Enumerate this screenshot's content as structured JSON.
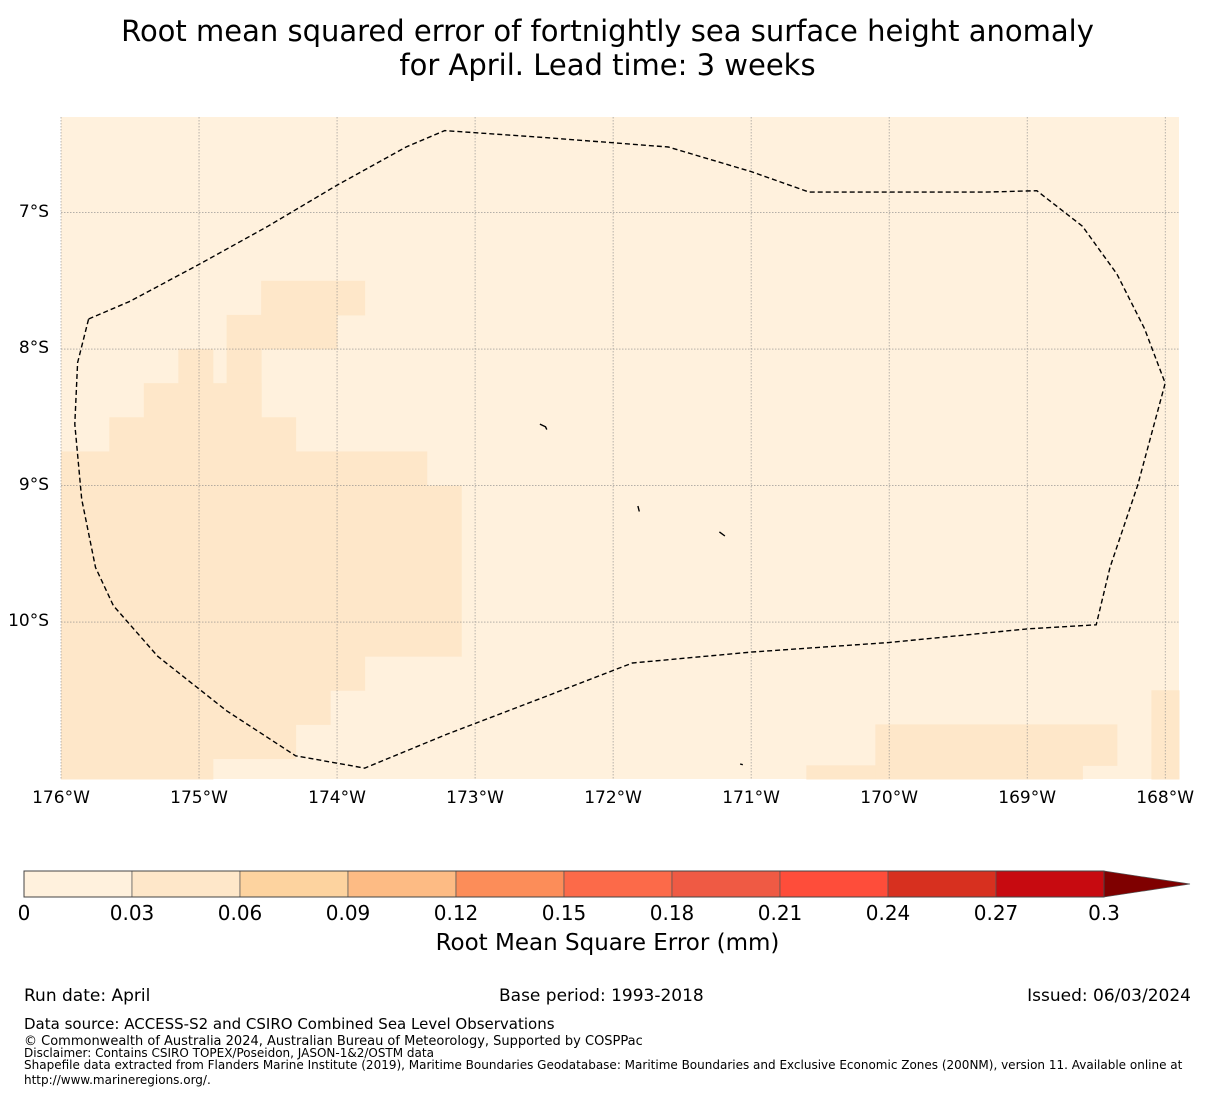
{
  "title_line1": "Root mean squared error of fortnightly sea surface height anomaly",
  "title_line2": "for April. Lead time: 3 weeks",
  "map": {
    "lon_range": [
      -176,
      -167.9
    ],
    "lat_range": [
      -11.15,
      -6.3
    ],
    "lon_ticks": [
      {
        "value": -176,
        "label": "176°W"
      },
      {
        "value": -175,
        "label": "175°W"
      },
      {
        "value": -174,
        "label": "174°W"
      },
      {
        "value": -173,
        "label": "173°W"
      },
      {
        "value": -172,
        "label": "172°W"
      },
      {
        "value": -171,
        "label": "171°W"
      },
      {
        "value": -170,
        "label": "170°W"
      },
      {
        "value": -169,
        "label": "169°W"
      },
      {
        "value": -168,
        "label": "168°W"
      }
    ],
    "lat_ticks": [
      {
        "value": -7,
        "label": "7°S"
      },
      {
        "value": -8,
        "label": "8°S"
      },
      {
        "value": -9,
        "label": "9°S"
      },
      {
        "value": -10,
        "label": "10°S"
      }
    ],
    "background_color": "#fff1dd",
    "eez_boundary": [
      [
        -175.8,
        -7.78
      ],
      [
        -175.5,
        -7.65
      ],
      [
        -175.0,
        -7.38
      ],
      [
        -174.5,
        -7.1
      ],
      [
        -174.0,
        -6.8
      ],
      [
        -173.5,
        -6.52
      ],
      [
        -173.22,
        -6.4
      ],
      [
        -172.5,
        -6.45
      ],
      [
        -171.6,
        -6.52
      ],
      [
        -171.0,
        -6.7
      ],
      [
        -170.58,
        -6.85
      ],
      [
        -170.0,
        -6.85
      ],
      [
        -169.3,
        -6.85
      ],
      [
        -168.93,
        -6.84
      ],
      [
        -168.6,
        -7.1
      ],
      [
        -168.35,
        -7.45
      ],
      [
        -168.15,
        -7.85
      ],
      [
        -168.0,
        -8.25
      ],
      [
        -168.2,
        -9.0
      ],
      [
        -168.4,
        -9.6
      ],
      [
        -168.5,
        -10.02
      ],
      [
        -169.0,
        -10.05
      ],
      [
        -170.0,
        -10.15
      ],
      [
        -171.0,
        -10.22
      ],
      [
        -171.86,
        -10.3
      ],
      [
        -172.5,
        -10.55
      ],
      [
        -173.2,
        -10.82
      ],
      [
        -173.8,
        -11.07
      ],
      [
        -174.3,
        -10.98
      ],
      [
        -174.8,
        -10.65
      ],
      [
        -175.3,
        -10.25
      ],
      [
        -175.62,
        -9.88
      ],
      [
        -175.75,
        -9.6
      ],
      [
        -175.85,
        -9.1
      ],
      [
        -175.9,
        -8.55
      ],
      [
        -175.88,
        -8.1
      ],
      [
        -175.8,
        -7.78
      ]
    ],
    "islands": [
      {
        "name": "",
        "points": [
          [
            -172.53,
            -8.55
          ],
          [
            -172.49,
            -8.57
          ],
          [
            -172.48,
            -8.59
          ]
        ]
      },
      {
        "name": "",
        "points": [
          [
            -171.82,
            -9.15
          ],
          [
            -171.81,
            -9.19
          ]
        ]
      },
      {
        "name": "",
        "points": [
          [
            -171.23,
            -9.34
          ],
          [
            -171.19,
            -9.37
          ]
        ]
      },
      {
        "name": "",
        "points": [
          [
            -171.08,
            -11.04
          ],
          [
            -171.06,
            -11.045
          ]
        ]
      }
    ],
    "error_cells_level2": [
      {
        "lon0": -174.55,
        "lon1": -173.8,
        "lat0": -7.75,
        "lat1": -7.5
      },
      {
        "lon0": -174.8,
        "lon1": -174.0,
        "lat0": -8.0,
        "lat1": -7.75
      },
      {
        "lon0": -175.15,
        "lon1": -174.9,
        "lat0": -8.25,
        "lat1": -8.0
      },
      {
        "lon0": -174.8,
        "lon1": -174.55,
        "lat0": -8.5,
        "lat1": -8.0
      },
      {
        "lon0": -175.4,
        "lon1": -174.55,
        "lat0": -8.5,
        "lat1": -8.25
      },
      {
        "lon0": -175.65,
        "lon1": -174.3,
        "lat0": -8.75,
        "lat1": -8.5
      },
      {
        "lon0": -176.0,
        "lon1": -173.35,
        "lat0": -9.0,
        "lat1": -8.75
      },
      {
        "lon0": -176.0,
        "lon1": -173.1,
        "lat0": -10.0,
        "lat1": -9.0
      },
      {
        "lon0": -176.0,
        "lon1": -173.1,
        "lat0": -10.25,
        "lat1": -10.0
      },
      {
        "lon0": -176.0,
        "lon1": -173.8,
        "lat0": -10.5,
        "lat1": -10.25
      },
      {
        "lon0": -176.0,
        "lon1": -174.05,
        "lat0": -10.75,
        "lat1": -10.5
      },
      {
        "lon0": -176.0,
        "lon1": -174.3,
        "lat0": -11.0,
        "lat1": -10.75
      },
      {
        "lon0": -176.0,
        "lon1": -174.9,
        "lat0": -11.15,
        "lat1": -11.0
      },
      {
        "lon0": -170.1,
        "lon1": -168.35,
        "lat0": -11.05,
        "lat1": -10.75
      },
      {
        "lon0": -170.6,
        "lon1": -170.1,
        "lat0": -11.15,
        "lat1": -11.05
      },
      {
        "lon0": -170.1,
        "lon1": -168.6,
        "lat0": -11.15,
        "lat1": -11.05
      },
      {
        "lon0": -168.1,
        "lon1": -167.9,
        "lat0": -11.15,
        "lat1": -10.5
      }
    ],
    "level2_color": "#fee7c9"
  },
  "colorbar": {
    "bounds": [
      0,
      0.03,
      0.06,
      0.09,
      0.12,
      0.15,
      0.18,
      0.21,
      0.24,
      0.27,
      0.3
    ],
    "tick_labels": [
      "0",
      "0.03",
      "0.06",
      "0.09",
      "0.12",
      "0.15",
      "0.18",
      "0.21",
      "0.24",
      "0.27",
      "0.3"
    ],
    "colors": [
      "#fff1dd",
      "#fee7c9",
      "#fdd39f",
      "#fdbb84",
      "#fc8d59",
      "#fc6a49",
      "#ef5a44",
      "#fe4d3a",
      "#d7301f",
      "#c70a10",
      "#b00000"
    ],
    "extend_color": "#7f0000",
    "label": "Root Mean Square Error (mm)"
  },
  "footer": {
    "run_date": "Run date: April",
    "base_period": "Base period: 1993-2018",
    "issued": "Issued: 06/03/2024",
    "data_source": "Data source: ACCESS-S2 and CSIRO Combined Sea Level Observations",
    "copyright": "© Commonwealth of Australia 2024, Australian Bureau of Meteorology, Supported by COSPPac",
    "disclaimer": "Disclaimer: Contains CSIRO TOPEX/Poseidon, JASON-1&2/OSTM data",
    "shapefile": "Shapefile data extracted from Flanders Marine Institute (2019), Maritime Boundaries Geodatabase: Maritime Boundaries and Exclusive Economic Zones (200NM), version 11. Available online at",
    "url": "http://www.marineregions.org/."
  }
}
